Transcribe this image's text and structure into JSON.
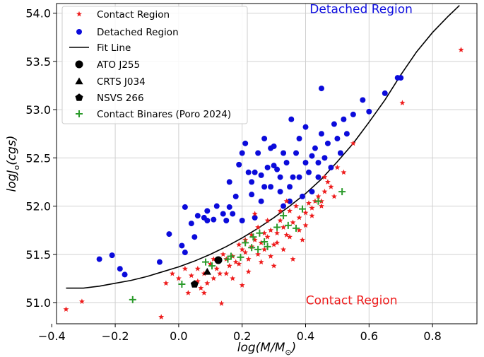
{
  "chart_data": {
    "type": "scatter",
    "xlabel_main": "log(M/M",
    "xlabel_sub": "⊙",
    "xlabel_end": ")",
    "ylabel_main": "logJ",
    "ylabel_sub": "o",
    "ylabel_end": "(cgs)",
    "xlim": [
      -0.385,
      0.94
    ],
    "ylim": [
      50.78,
      54.1
    ],
    "xticks": [
      -0.4,
      -0.2,
      0.0,
      0.2,
      0.4,
      0.6,
      0.8
    ],
    "xtick_labels": [
      "−0.4",
      "−0.2",
      "0.0",
      "0.2",
      "0.4",
      "0.6",
      "0.8"
    ],
    "yticks": [
      51.0,
      51.5,
      52.0,
      52.5,
      53.0,
      53.5,
      54.0
    ],
    "ytick_labels": [
      "51.0",
      "51.5",
      "52.0",
      "52.5",
      "53.0",
      "53.5",
      "54.0"
    ],
    "grid": true,
    "legend_position": "top-left",
    "annotations": [
      {
        "text": "Detached Region",
        "x": 0.575,
        "y": 54.0,
        "color": "#1010e0"
      },
      {
        "text": "Contact Region",
        "x": 0.545,
        "y": 50.98,
        "color": "#ee1c1c"
      }
    ],
    "colors": {
      "contact": "#ee1c1c",
      "detached": "#0b0bdb",
      "fit": "#000000",
      "poro": "#2a9a2a",
      "target": "#000000"
    },
    "series": [
      {
        "name": "Contact Region",
        "marker": "star",
        "points": [
          [
            -0.355,
            50.93
          ],
          [
            -0.305,
            51.01
          ],
          [
            -0.055,
            50.85
          ],
          [
            0.135,
            50.99
          ],
          [
            0.89,
            53.62
          ],
          [
            0.705,
            53.07
          ],
          [
            0.55,
            52.65
          ],
          [
            0.52,
            52.35
          ],
          [
            0.49,
            52.1
          ],
          [
            0.47,
            52.25
          ],
          [
            0.46,
            52.15
          ],
          [
            0.45,
            52.05
          ],
          [
            0.44,
            52.1
          ],
          [
            0.42,
            51.98
          ],
          [
            0.41,
            52.03
          ],
          [
            0.4,
            51.93
          ],
          [
            0.38,
            51.88
          ],
          [
            0.37,
            52.0
          ],
          [
            0.36,
            51.83
          ],
          [
            0.35,
            51.95
          ],
          [
            0.34,
            51.7
          ],
          [
            0.33,
            51.78
          ],
          [
            0.32,
            51.85
          ],
          [
            0.31,
            51.72
          ],
          [
            0.3,
            51.6
          ],
          [
            0.29,
            51.75
          ],
          [
            0.28,
            51.68
          ],
          [
            0.27,
            51.55
          ],
          [
            0.26,
            51.62
          ],
          [
            0.25,
            51.5
          ],
          [
            0.24,
            51.65
          ],
          [
            0.23,
            51.58
          ],
          [
            0.22,
            51.45
          ],
          [
            0.21,
            51.52
          ],
          [
            0.2,
            51.55
          ],
          [
            0.19,
            51.6
          ],
          [
            0.18,
            51.42
          ],
          [
            0.17,
            51.48
          ],
          [
            0.16,
            51.38
          ],
          [
            0.15,
            51.45
          ],
          [
            0.14,
            51.5
          ],
          [
            0.13,
            51.3
          ],
          [
            0.12,
            51.35
          ],
          [
            0.11,
            51.25
          ],
          [
            0.1,
            51.4
          ],
          [
            0.09,
            51.2
          ],
          [
            0.08,
            51.3
          ],
          [
            0.07,
            51.15
          ],
          [
            0.06,
            51.22
          ],
          [
            0.05,
            51.18
          ],
          [
            0.04,
            51.28
          ],
          [
            0.03,
            51.1
          ],
          [
            0.02,
            51.35
          ],
          [
            0.0,
            51.25
          ],
          [
            -0.02,
            51.3
          ],
          [
            -0.04,
            51.2
          ],
          [
            0.31,
            51.62
          ],
          [
            0.33,
            51.55
          ],
          [
            0.35,
            51.68
          ],
          [
            0.38,
            51.75
          ],
          [
            0.42,
            51.9
          ],
          [
            0.45,
            52.0
          ],
          [
            0.48,
            52.2
          ],
          [
            0.29,
            51.48
          ],
          [
            0.27,
            51.72
          ],
          [
            0.25,
            51.78
          ],
          [
            0.23,
            51.7
          ],
          [
            0.21,
            51.65
          ],
          [
            0.19,
            51.4
          ],
          [
            0.36,
            51.45
          ],
          [
            0.3,
            51.38
          ],
          [
            0.26,
            51.42
          ],
          [
            0.39,
            51.65
          ],
          [
            0.4,
            51.8
          ],
          [
            0.43,
            52.05
          ],
          [
            0.34,
            52.05
          ],
          [
            0.32,
            51.95
          ],
          [
            0.28,
            51.85
          ],
          [
            0.24,
            51.92
          ],
          [
            0.46,
            52.3
          ],
          [
            0.5,
            52.4
          ],
          [
            0.22,
            51.32
          ],
          [
            0.17,
            51.25
          ],
          [
            0.15,
            51.3
          ],
          [
            0.11,
            51.45
          ],
          [
            0.08,
            51.1
          ],
          [
            0.06,
            51.35
          ],
          [
            0.2,
            51.18
          ]
        ]
      },
      {
        "name": "Detached Region",
        "marker": "circle",
        "points": [
          [
            -0.25,
            51.45
          ],
          [
            -0.21,
            51.49
          ],
          [
            -0.185,
            51.35
          ],
          [
            -0.17,
            51.29
          ],
          [
            -0.06,
            51.42
          ],
          [
            -0.03,
            51.71
          ],
          [
            0.01,
            51.59
          ],
          [
            0.02,
            51.52
          ],
          [
            0.02,
            51.99
          ],
          [
            0.04,
            51.82
          ],
          [
            0.05,
            51.68
          ],
          [
            0.06,
            51.9
          ],
          [
            0.08,
            51.88
          ],
          [
            0.09,
            51.95
          ],
          [
            0.09,
            51.85
          ],
          [
            0.11,
            51.86
          ],
          [
            0.12,
            52.0
          ],
          [
            0.14,
            51.92
          ],
          [
            0.15,
            51.85
          ],
          [
            0.16,
            51.99
          ],
          [
            0.17,
            51.92
          ],
          [
            0.18,
            52.1
          ],
          [
            0.2,
            51.85
          ],
          [
            0.2,
            52.55
          ],
          [
            0.21,
            52.65
          ],
          [
            0.22,
            52.35
          ],
          [
            0.23,
            52.25
          ],
          [
            0.24,
            51.88
          ],
          [
            0.25,
            52.55
          ],
          [
            0.26,
            52.32
          ],
          [
            0.26,
            52.05
          ],
          [
            0.27,
            52.7
          ],
          [
            0.28,
            52.4
          ],
          [
            0.29,
            52.2
          ],
          [
            0.3,
            52.62
          ],
          [
            0.31,
            52.38
          ],
          [
            0.32,
            52.15
          ],
          [
            0.33,
            52.0
          ],
          [
            0.34,
            52.45
          ],
          [
            0.35,
            52.2
          ],
          [
            0.36,
            52.3
          ],
          [
            0.37,
            52.55
          ],
          [
            0.38,
            52.3
          ],
          [
            0.39,
            52.1
          ],
          [
            0.4,
            52.45
          ],
          [
            0.41,
            52.35
          ],
          [
            0.42,
            52.15
          ],
          [
            0.43,
            52.6
          ],
          [
            0.44,
            52.3
          ],
          [
            0.45,
            52.75
          ],
          [
            0.46,
            52.5
          ],
          [
            0.47,
            52.65
          ],
          [
            0.48,
            52.4
          ],
          [
            0.49,
            52.85
          ],
          [
            0.5,
            52.7
          ],
          [
            0.51,
            52.55
          ],
          [
            0.52,
            52.9
          ],
          [
            0.53,
            52.75
          ],
          [
            0.55,
            52.95
          ],
          [
            0.58,
            53.1
          ],
          [
            0.6,
            52.98
          ],
          [
            0.65,
            53.17
          ],
          [
            0.69,
            53.33
          ],
          [
            0.7,
            53.33
          ],
          [
            0.45,
            53.22
          ],
          [
            0.4,
            52.82
          ],
          [
            0.355,
            52.9
          ],
          [
            0.33,
            52.55
          ],
          [
            0.3,
            52.42
          ],
          [
            0.23,
            52.12
          ],
          [
            0.19,
            52.43
          ],
          [
            0.16,
            52.25
          ],
          [
            0.38,
            52.7
          ],
          [
            0.42,
            52.52
          ],
          [
            0.44,
            52.45
          ],
          [
            0.29,
            52.6
          ],
          [
            0.32,
            52.3
          ],
          [
            0.35,
            52.05
          ],
          [
            0.27,
            52.2
          ],
          [
            0.24,
            52.35
          ]
        ]
      },
      {
        "name": "Fit Line",
        "marker": "line",
        "points": [
          [
            -0.355,
            51.15
          ],
          [
            -0.3,
            51.15
          ],
          [
            -0.25,
            51.17
          ],
          [
            -0.2,
            51.2
          ],
          [
            -0.15,
            51.23
          ],
          [
            -0.1,
            51.27
          ],
          [
            -0.05,
            51.32
          ],
          [
            0.0,
            51.37
          ],
          [
            0.05,
            51.43
          ],
          [
            0.1,
            51.5
          ],
          [
            0.15,
            51.58
          ],
          [
            0.2,
            51.67
          ],
          [
            0.25,
            51.77
          ],
          [
            0.3,
            51.88
          ],
          [
            0.35,
            52.0
          ],
          [
            0.4,
            52.13
          ],
          [
            0.45,
            52.28
          ],
          [
            0.5,
            52.46
          ],
          [
            0.55,
            52.65
          ],
          [
            0.6,
            52.87
          ],
          [
            0.65,
            53.1
          ],
          [
            0.7,
            53.36
          ],
          [
            0.75,
            53.6
          ],
          [
            0.8,
            53.8
          ],
          [
            0.85,
            53.97
          ],
          [
            0.885,
            54.08
          ]
        ]
      },
      {
        "name": "ATO J255",
        "marker": "circle-large",
        "points": [
          [
            0.125,
            51.44
          ]
        ]
      },
      {
        "name": "CRTS J034",
        "marker": "triangle",
        "points": [
          [
            0.09,
            51.32
          ]
        ]
      },
      {
        "name": "NSVS 266",
        "marker": "pentagon",
        "points": [
          [
            0.05,
            51.19
          ]
        ]
      },
      {
        "name": "Contact Binares (Poro 2024)",
        "marker": "plus",
        "points": [
          [
            -0.145,
            51.03
          ],
          [
            0.01,
            51.19
          ],
          [
            0.085,
            51.42
          ],
          [
            0.105,
            51.38
          ],
          [
            0.155,
            51.45
          ],
          [
            0.165,
            51.48
          ],
          [
            0.195,
            51.47
          ],
          [
            0.21,
            51.62
          ],
          [
            0.23,
            51.57
          ],
          [
            0.25,
            51.55
          ],
          [
            0.255,
            51.72
          ],
          [
            0.27,
            51.63
          ],
          [
            0.31,
            51.78
          ],
          [
            0.33,
            51.9
          ],
          [
            0.345,
            51.8
          ],
          [
            0.37,
            51.77
          ],
          [
            0.39,
            51.97
          ],
          [
            0.44,
            52.05
          ],
          [
            0.515,
            52.15
          ],
          [
            0.28,
            51.58
          ],
          [
            0.235,
            51.68
          ]
        ]
      }
    ]
  }
}
